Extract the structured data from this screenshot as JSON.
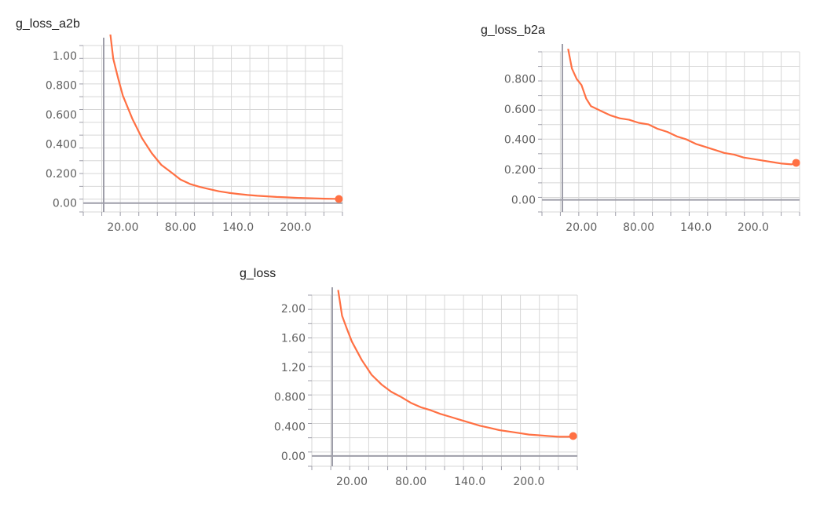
{
  "colors": {
    "series": "#ff7043",
    "grid": "#d7d7d7",
    "axis": "#9e9ea9",
    "tick_text": "#616161",
    "title_text": "#212121"
  },
  "chart_data": [
    {
      "type": "line",
      "title": "g_loss_a2b",
      "xlabel": "",
      "ylabel": "",
      "grid": true,
      "xlim": [
        0,
        270
      ],
      "ylim": [
        -0.06,
        1.07
      ],
      "x_ticks": [
        20,
        80,
        140,
        200
      ],
      "x_tick_labels": [
        "20.00",
        "80.00",
        "140.0",
        "200.0"
      ],
      "y_ticks": [
        0,
        0.2,
        0.4,
        0.6,
        0.8,
        1.0
      ],
      "y_tick_labels": [
        "0.00",
        "0.200",
        "0.400",
        "0.600",
        "0.800",
        "1.00"
      ],
      "series": [
        {
          "x": [
            6,
            10,
            15,
            20,
            30,
            40,
            50,
            60,
            70,
            80,
            90,
            100,
            110,
            120,
            130,
            140,
            150,
            160,
            170,
            180,
            190,
            200,
            210,
            220,
            230,
            240,
            245
          ],
          "y": [
            1.2,
            0.98,
            0.85,
            0.73,
            0.57,
            0.44,
            0.34,
            0.26,
            0.21,
            0.16,
            0.13,
            0.11,
            0.095,
            0.08,
            0.07,
            0.062,
            0.055,
            0.05,
            0.046,
            0.042,
            0.039,
            0.036,
            0.034,
            0.032,
            0.03,
            0.029,
            0.028
          ]
        }
      ]
    },
    {
      "type": "line",
      "title": "g_loss_b2a",
      "xlabel": "",
      "ylabel": "",
      "grid": true,
      "xlim": [
        0,
        270
      ],
      "ylim": [
        -0.08,
        0.98
      ],
      "x_ticks": [
        20,
        80,
        140,
        200
      ],
      "x_tick_labels": [
        "20.00",
        "80.00",
        "140.0",
        "200.0"
      ],
      "y_ticks": [
        0,
        0.2,
        0.4,
        0.6,
        0.8
      ],
      "y_tick_labels": [
        "0.00",
        "0.200",
        "0.400",
        "0.600",
        "0.800"
      ],
      "series": [
        {
          "x": [
            6,
            10,
            15,
            20,
            25,
            30,
            40,
            50,
            60,
            70,
            80,
            90,
            100,
            110,
            120,
            130,
            140,
            150,
            160,
            170,
            180,
            190,
            200,
            210,
            220,
            230,
            240,
            245
          ],
          "y": [
            1.0,
            0.87,
            0.8,
            0.76,
            0.67,
            0.62,
            0.59,
            0.56,
            0.54,
            0.53,
            0.51,
            0.5,
            0.47,
            0.45,
            0.42,
            0.4,
            0.37,
            0.35,
            0.33,
            0.31,
            0.3,
            0.28,
            0.27,
            0.26,
            0.25,
            0.24,
            0.235,
            0.245
          ]
        }
      ]
    },
    {
      "type": "line",
      "title": "g_loss",
      "xlabel": "",
      "ylabel": "",
      "grid": true,
      "xlim": [
        0,
        270
      ],
      "ylim": [
        -0.14,
        2.18
      ],
      "x_ticks": [
        20,
        80,
        140,
        200
      ],
      "x_tick_labels": [
        "20.00",
        "80.00",
        "140.0",
        "200.0"
      ],
      "y_ticks": [
        0,
        0.4,
        0.8,
        1.2,
        1.6,
        2.0
      ],
      "y_tick_labels": [
        "0.00",
        "0.400",
        "0.800",
        "1.20",
        "1.60",
        "2.00"
      ],
      "series": [
        {
          "x": [
            6,
            10,
            15,
            20,
            30,
            40,
            50,
            60,
            70,
            80,
            90,
            100,
            110,
            120,
            130,
            140,
            150,
            160,
            170,
            180,
            190,
            200,
            210,
            220,
            230,
            240,
            245
          ],
          "y": [
            2.25,
            1.9,
            1.72,
            1.55,
            1.3,
            1.1,
            0.97,
            0.87,
            0.8,
            0.72,
            0.66,
            0.62,
            0.57,
            0.53,
            0.49,
            0.45,
            0.41,
            0.38,
            0.35,
            0.33,
            0.31,
            0.29,
            0.28,
            0.27,
            0.26,
            0.26,
            0.27
          ]
        }
      ]
    }
  ]
}
